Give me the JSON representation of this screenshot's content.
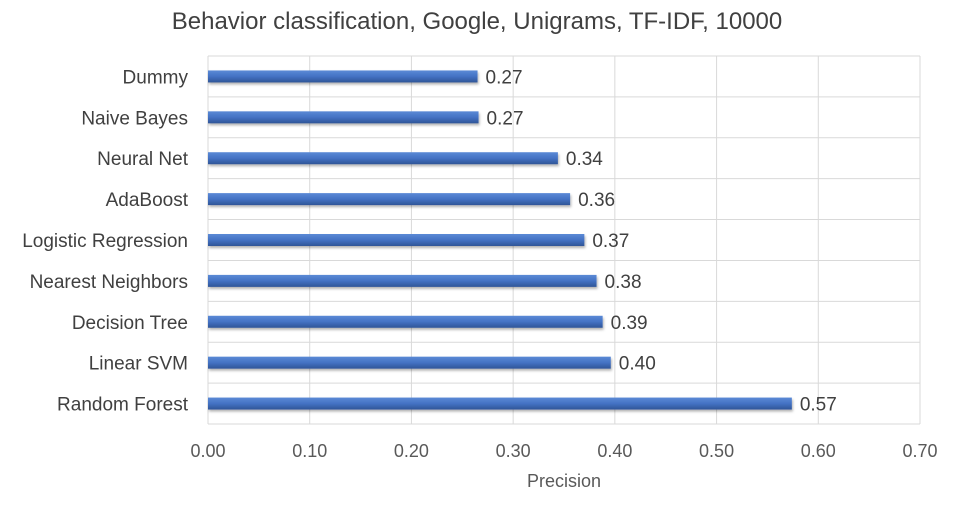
{
  "chart_data": {
    "type": "bar",
    "orientation": "horizontal",
    "title": "Behavior classification, Google, Unigrams, TF-IDF, 10000",
    "xlabel": "Precision",
    "ylabel": "",
    "categories": [
      "Dummy",
      "Naive Bayes",
      "Neural Net",
      "AdaBoost",
      "Logistic Regression",
      "Nearest Neighbors",
      "Decision Tree",
      "Linear SVM",
      "Random Forest"
    ],
    "values": [
      0.265,
      0.266,
      0.344,
      0.356,
      0.37,
      0.382,
      0.388,
      0.396,
      0.574
    ],
    "value_labels": [
      "0.27",
      "0.27",
      "0.34",
      "0.36",
      "0.37",
      "0.38",
      "0.39",
      "0.40",
      "0.57"
    ],
    "xlim": [
      0,
      0.7
    ],
    "xticks": [
      "0.00",
      "0.10",
      "0.20",
      "0.30",
      "0.40",
      "0.50",
      "0.60",
      "0.70"
    ],
    "grid": true,
    "bar_color": "#4472c4",
    "grid_color": "#d9d9d9"
  }
}
